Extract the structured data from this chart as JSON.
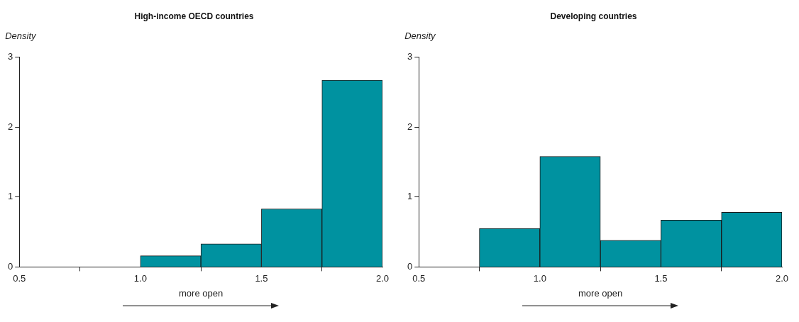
{
  "chart_data": [
    {
      "type": "histogram",
      "title": "High-income OECD countries",
      "ylabel": "Density",
      "xlabel": "more open",
      "bins": [
        1.0,
        1.25,
        1.5,
        1.75,
        2.0
      ],
      "values": [
        0.16,
        0.33,
        0.83,
        2.67
      ],
      "color": "#0092a0",
      "xlim": [
        0.5,
        2.0
      ],
      "xticks": [
        {
          "value": 0.5,
          "label": "0.5"
        },
        {
          "value": 1,
          "label": "1.0"
        },
        {
          "value": 1.5,
          "label": "1.5"
        },
        {
          "value": 2,
          "label": "2.0"
        }
      ],
      "ylim": [
        0,
        3
      ],
      "yticks": [
        0,
        1,
        2,
        3
      ],
      "grid": false,
      "legend": false
    },
    {
      "type": "histogram",
      "title": "Developing countries",
      "ylabel": "Density",
      "xlabel": "more open",
      "bins": [
        0.75,
        1.0,
        1.25,
        1.5,
        1.75,
        2.0
      ],
      "values": [
        0.55,
        1.58,
        0.38,
        0.67,
        0.78
      ],
      "color": "#0092a0",
      "xlim": [
        0.5,
        2.0
      ],
      "xticks": [
        {
          "value": 0.5,
          "label": "0.5"
        },
        {
          "value": 1,
          "label": "1.0"
        },
        {
          "value": 1.5,
          "label": "1.5"
        },
        {
          "value": 2,
          "label": "2.0"
        }
      ],
      "ylim": [
        0,
        3
      ],
      "yticks": [
        0,
        1,
        2,
        3
      ],
      "grid": false,
      "legend": false
    }
  ]
}
